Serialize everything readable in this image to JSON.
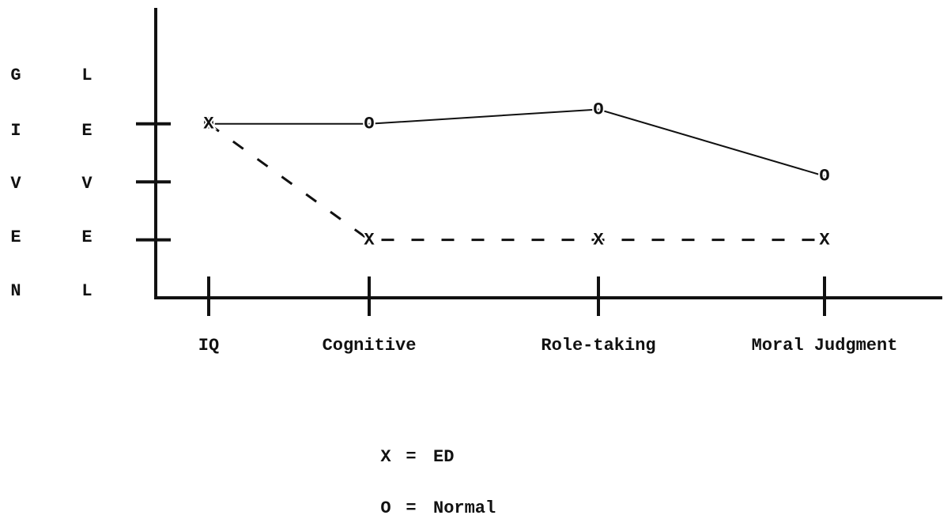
{
  "chart_data": {
    "type": "line",
    "ylabel_columns": [
      [
        "G",
        "I",
        "V",
        "E",
        "N"
      ],
      [
        "L",
        "E",
        "V",
        "E",
        "L"
      ]
    ],
    "categories": [
      "IQ",
      "Cognitive",
      "Role-taking",
      "Moral Judgment"
    ],
    "series": [
      {
        "name": "Normal",
        "marker": "O",
        "color": "#111111",
        "dashed": false,
        "values": [
          3,
          3,
          3.25,
          2.1
        ]
      },
      {
        "name": "ED",
        "marker": "X",
        "color": "#111111",
        "dashed": true,
        "values": [
          3,
          1,
          1,
          1
        ]
      }
    ],
    "ylim": [
      0,
      5
    ],
    "yticks": [
      1,
      2,
      3
    ],
    "legend_separator": "="
  }
}
